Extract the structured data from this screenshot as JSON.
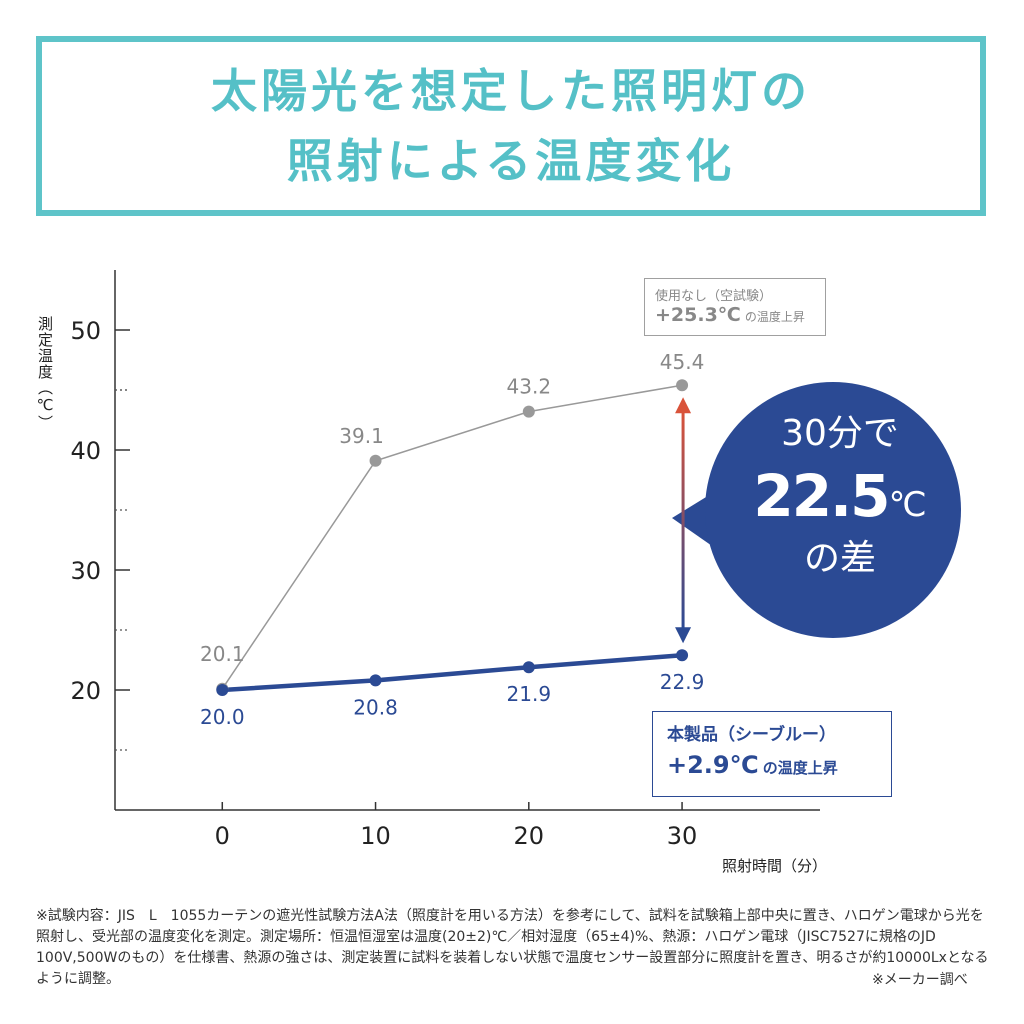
{
  "title": {
    "line1": "太陽光を想定した照明灯の",
    "line2": "照射による温度変化"
  },
  "chart_data": {
    "type": "line",
    "ylabel": "測定温度（℃）",
    "xlabel": "照射時間（分）",
    "x": [
      0,
      10,
      20,
      30
    ],
    "x_ticks": [
      "0",
      "10",
      "20",
      "30"
    ],
    "y_ticks": [
      "20",
      "30",
      "40",
      "50"
    ],
    "ylim": [
      10,
      55
    ],
    "xlim": [
      -7,
      39
    ],
    "series": [
      {
        "name": "使用なし（空試験）",
        "values": [
          20.1,
          39.1,
          43.2,
          45.4
        ],
        "labels": [
          "20.1",
          "39.1",
          "43.2",
          "45.4"
        ],
        "color": "#999999"
      },
      {
        "name": "本製品（シーブルー）",
        "values": [
          20.0,
          20.8,
          21.9,
          22.9
        ],
        "labels": [
          "20.0",
          "20.8",
          "21.9",
          "22.9"
        ],
        "color": "#2b4a94"
      }
    ],
    "arrow_colors": {
      "top": "#d9533a",
      "bottom": "#2b4a94"
    }
  },
  "callouts": {
    "gray": {
      "label": "使用なし（空試験）",
      "value": "+25.3℃",
      "suffix": "の温度上昇"
    },
    "blue": {
      "label": "本製品（シーブルー）",
      "value": "+2.9℃",
      "suffix": "の温度上昇"
    }
  },
  "bubble": {
    "line1": "30分で",
    "big": "22.5",
    "unit": "℃",
    "line3": "の差",
    "color": "#2b4a94"
  },
  "footnote": {
    "text": "※試験内容：JIS　L　1055カーテンの遮光性試験方法A法（照度計を用いる方法）を参考にして、試料を試験箱上部中央に置き、ハロゲン電球から光を照射し、受光部の温度変化を測定。測定場所：恒温恒湿室は温度(20±2)℃／相対湿度（65±4)%、熱源：ハロゲン電球（JISC7527に規格のJD　100V,500Wのもの）を仕様書、熱源の強さは、測定装置に試料を装着しない状態で温度センサー設置部分に照度計を置き、明るさが約10000Lxとなるように調整。",
    "source": "※メーカー調べ"
  }
}
